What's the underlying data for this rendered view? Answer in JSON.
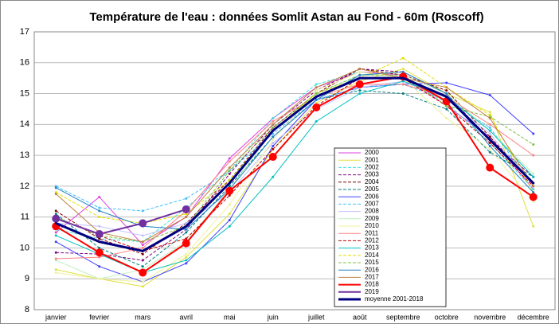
{
  "chart_data": {
    "type": "line",
    "title": "Température de l'eau : données Somlit Astan au Fond - 60m (Roscoff)",
    "categories": [
      "janvier",
      "fevrier",
      "mars",
      "avril",
      "mai",
      "juin",
      "juillet",
      "août",
      "septembre",
      "octobre",
      "novembre",
      "décembre"
    ],
    "ylim": [
      8,
      17
    ],
    "yticks": [
      8,
      9,
      10,
      11,
      12,
      13,
      14,
      15,
      16,
      17
    ],
    "grid": true,
    "series": [
      {
        "name": "2000",
        "color": "#e040e0",
        "values": [
          10.5,
          11.65,
          10.1,
          11.0,
          12.9,
          14.2,
          15.2,
          15.7,
          15.6,
          14.6,
          13.6,
          11.9
        ]
      },
      {
        "name": "2001",
        "color": "#e0e040",
        "values": [
          9.3,
          9.0,
          8.75,
          9.7,
          11.1,
          13.2,
          14.7,
          15.4,
          15.8,
          15.0,
          14.4,
          10.7
        ]
      },
      {
        "name": "2002",
        "color": "#40e0e0",
        "dash": true,
        "values": [
          10.6,
          10.3,
          10.2,
          11.3,
          12.5,
          14.2,
          15.3,
          15.7,
          15.5,
          14.7,
          13.4,
          11.9
        ]
      },
      {
        "name": "2003",
        "color": "#800080",
        "dash": true,
        "values": [
          9.85,
          9.8,
          9.6,
          10.6,
          12.4,
          14.0,
          15.1,
          15.8,
          15.7,
          15.0,
          13.5,
          12.3
        ]
      },
      {
        "name": "2004",
        "color": "#800000",
        "dash": true,
        "values": [
          11.2,
          10.3,
          9.8,
          10.8,
          12.2,
          13.9,
          15.0,
          15.8,
          15.6,
          15.1,
          13.6,
          12.1
        ]
      },
      {
        "name": "2005",
        "color": "#008080",
        "dash": true,
        "values": [
          11.1,
          10.0,
          9.4,
          10.5,
          12.0,
          13.6,
          14.8,
          15.1,
          15.0,
          14.5,
          13.1,
          12.3
        ]
      },
      {
        "name": "2006",
        "color": "#4040ff",
        "values": [
          10.2,
          9.4,
          8.9,
          9.5,
          10.9,
          13.3,
          14.8,
          15.2,
          15.3,
          15.35,
          14.95,
          13.7
        ]
      },
      {
        "name": "2007",
        "color": "#40c0ff",
        "dash": true,
        "values": [
          12.0,
          11.3,
          11.2,
          11.6,
          12.5,
          13.7,
          14.8,
          15.2,
          15.3,
          14.8,
          13.9,
          12.0
        ]
      },
      {
        "name": "2008",
        "color": "#c0c0ff",
        "values": [
          10.8,
          10.7,
          10.4,
          10.8,
          11.8,
          13.4,
          14.5,
          15.2,
          15.4,
          14.8,
          13.7,
          12.0
        ]
      },
      {
        "name": "2009",
        "color": "#c0f0c0",
        "values": [
          9.6,
          9.0,
          9.3,
          10.2,
          11.9,
          13.8,
          15.0,
          15.6,
          15.6,
          15.0,
          13.8,
          12.4
        ]
      },
      {
        "name": "2010",
        "color": "#f0f0a0",
        "values": [
          9.2,
          9.0,
          8.9,
          9.8,
          11.4,
          13.5,
          15.1,
          15.7,
          15.5,
          14.2,
          13.2,
          11.5
        ]
      },
      {
        "name": "2011",
        "color": "#ff8080",
        "values": [
          9.65,
          9.7,
          10.0,
          11.2,
          12.8,
          14.1,
          14.9,
          15.3,
          15.3,
          14.9,
          14.0,
          13.0
        ]
      },
      {
        "name": "2012",
        "color": "#c00000",
        "dash": true,
        "values": [
          11.0,
          10.4,
          9.9,
          10.3,
          11.7,
          13.2,
          14.6,
          15.5,
          15.5,
          14.6,
          13.4,
          12.0
        ]
      },
      {
        "name": "2013",
        "color": "#00c0c0",
        "values": [
          10.4,
          9.8,
          9.2,
          9.6,
          10.7,
          12.3,
          14.1,
          15.0,
          15.4,
          14.9,
          13.8,
          12.3
        ]
      },
      {
        "name": "2014",
        "color": "#e0e000",
        "dash": true,
        "values": [
          11.8,
          11.0,
          10.8,
          11.1,
          12.2,
          13.8,
          15.0,
          15.5,
          16.15,
          15.2,
          14.3,
          11.8
        ]
      },
      {
        "name": "2015",
        "color": "#80c040",
        "dash": true,
        "values": [
          11.0,
          10.4,
          10.2,
          10.7,
          12.5,
          13.9,
          15.0,
          15.6,
          15.6,
          14.6,
          14.25,
          13.35
        ]
      },
      {
        "name": "2016",
        "color": "#2080c0",
        "values": [
          11.95,
          11.2,
          10.7,
          10.6,
          11.9,
          13.6,
          14.8,
          15.6,
          15.7,
          15.0,
          13.3,
          11.8
        ]
      },
      {
        "name": "2017",
        "color": "#c08040",
        "values": [
          11.75,
          10.5,
          10.2,
          11.0,
          12.6,
          14.0,
          15.2,
          15.8,
          15.5,
          15.2,
          14.2,
          12.0
        ]
      },
      {
        "name": "2018",
        "color": "#ff0000",
        "bold": true,
        "values": [
          10.7,
          9.85,
          9.2,
          10.15,
          11.85,
          12.95,
          14.55,
          15.3,
          15.55,
          14.75,
          12.6,
          11.65
        ]
      },
      {
        "name": "2019",
        "color": "#7030a0",
        "bold": true,
        "values": [
          10.95,
          10.45,
          10.8,
          11.25,
          null,
          null,
          null,
          null,
          null,
          null,
          null,
          null
        ]
      },
      {
        "name": "moyenne 2001-2018",
        "color": "#000080",
        "width": 3,
        "values": [
          10.8,
          10.2,
          9.9,
          10.7,
          12.1,
          13.8,
          14.9,
          15.5,
          15.5,
          14.9,
          13.5,
          12.1
        ]
      }
    ]
  }
}
